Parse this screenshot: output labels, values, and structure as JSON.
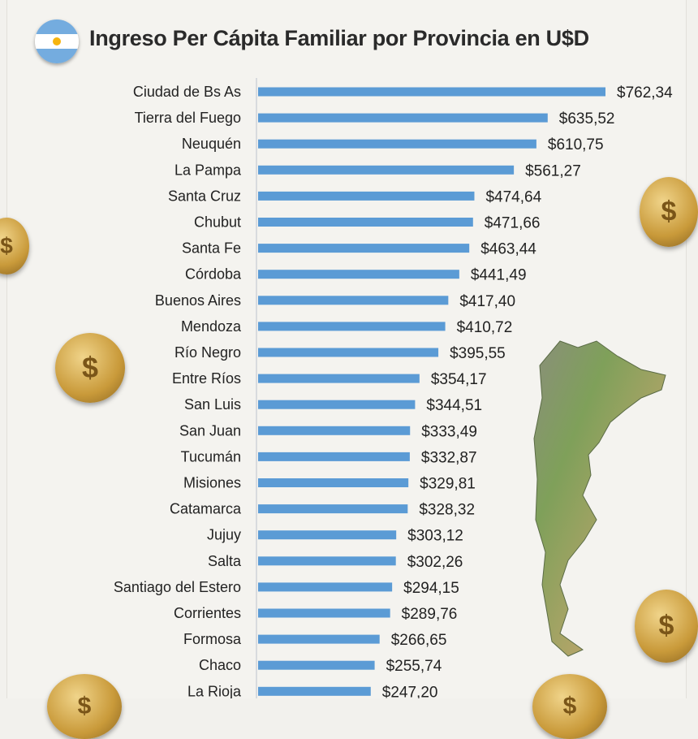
{
  "chart_data": {
    "type": "bar",
    "orientation": "horizontal",
    "title": "Ingreso Per Cápita Familiar por Provincia en U$D",
    "xlabel": "",
    "ylabel": "",
    "xlim": [
      0,
      762.34
    ],
    "grid": false,
    "categories": [
      "Ciudad de Bs As",
      "Tierra del Fuego",
      "Neuquén",
      "La Pampa",
      "Santa Cruz",
      "Chubut",
      "Santa Fe",
      "Córdoba",
      "Buenos Aires",
      "Mendoza",
      "Río Negro",
      "Entre Ríos",
      "San Luis",
      "San Juan",
      "Tucumán",
      "Misiones",
      "Catamarca",
      "Jujuy",
      "Salta",
      "Santiago del Estero",
      "Corrientes",
      "Formosa",
      "Chaco",
      "La Rioja"
    ],
    "values": [
      762.34,
      635.52,
      610.75,
      561.27,
      474.64,
      471.66,
      463.44,
      441.49,
      417.4,
      410.72,
      395.55,
      354.17,
      344.51,
      333.49,
      332.87,
      329.81,
      328.32,
      303.12,
      302.26,
      294.15,
      289.76,
      266.65,
      255.74,
      247.2
    ],
    "value_labels": [
      "$762,34",
      "$635,52",
      "$610,75",
      "$561,27",
      "$474,64",
      "$471,66",
      "$463,44",
      "$441,49",
      "$417,40",
      "$410,72",
      "$395,55",
      "$354,17",
      "$344,51",
      "$333,49",
      "$332,87",
      "$329,81",
      "$328,32",
      "$303,12",
      "$302,26",
      "$294,15",
      "$289,76",
      "$266,65",
      "$255,74",
      "$247,20"
    ],
    "bar_color": "#5b9bd5"
  },
  "coin_symbol": "$"
}
